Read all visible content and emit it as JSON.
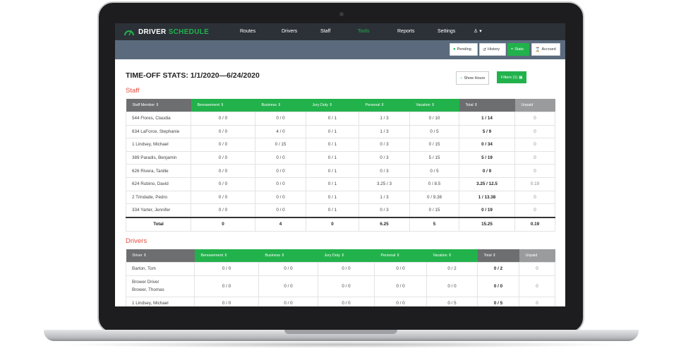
{
  "nav": {
    "brand_a": "DRIVER",
    "brand_b": "SCHEDULE",
    "items": [
      "Routes",
      "Drivers",
      "Staff",
      "Tools",
      "Reports",
      "Settings"
    ],
    "active": "Tools",
    "user_icon": "user-icon"
  },
  "toolbar": {
    "pending": "Pending",
    "history": "History",
    "stats": "Stats",
    "accrued": "Accrued"
  },
  "page": {
    "title": "TIME-OFF STATS: 1/1/2020—6/24/2020",
    "show_hours": "Show Hours",
    "filters": "Filters (1)"
  },
  "staff": {
    "title": "Staff",
    "headers": [
      "Staff Member ⇕",
      "Bereavement ⇕",
      "Business ⇕",
      "Jury Duty ⇕",
      "Personal ⇕",
      "Vacation ⇕",
      "Total ⇕",
      "Unpaid"
    ],
    "rows": [
      [
        "544 Flores, Claudia",
        "0 / 0",
        "0 / 0",
        "0 / 1",
        "1 / 3",
        "0 / 10",
        "1 / 14",
        "0"
      ],
      [
        "634 LaForce, Stephanie",
        "0 / 0",
        "4 / 0",
        "0 / 1",
        "1 / 3",
        "0 / 5",
        "5 / 9",
        "0"
      ],
      [
        "1 Lindsey, Michael",
        "0 / 0",
        "0 / 15",
        "0 / 1",
        "0 / 3",
        "0 / 15",
        "0 / 34",
        "0"
      ],
      [
        "389 Paradis, Benjamin",
        "0 / 0",
        "0 / 0",
        "0 / 1",
        "0 / 3",
        "5 / 15",
        "5 / 19",
        "0"
      ],
      [
        "626 Rivera, Tanille",
        "0 / 0",
        "0 / 0",
        "0 / 1",
        "0 / 3",
        "0 / 5",
        "0 / 9",
        "0"
      ],
      [
        "624 Rubino, David",
        "0 / 0",
        "0 / 0",
        "0 / 1",
        "3.25 / 3",
        "0 / 8.5",
        "3.25 / 12.5",
        "0.19"
      ],
      [
        "2 Trindade, Pedro",
        "0 / 0",
        "0 / 0",
        "0 / 1",
        "1 / 3",
        "0 / 9.38",
        "1 / 13.38",
        "0"
      ],
      [
        "334 Yarter, Jennifer",
        "0 / 0",
        "0 / 0",
        "0 / 1",
        "0 / 3",
        "0 / 15",
        "0 / 19",
        "0"
      ]
    ],
    "total": [
      "Total",
      "0",
      "4",
      "0",
      "6.25",
      "5",
      "15.25",
      "0.19"
    ]
  },
  "drivers": {
    "title": "Drivers",
    "headers": [
      "Driver ⇕",
      "Bereavement ⇕",
      "Business ⇕",
      "Jury Duty ⇕",
      "Personal ⇕",
      "Vacation ⇕",
      "Total ⇕",
      "Unpaid"
    ],
    "rows": [
      [
        "Barton, Tom",
        "0 / 0",
        "0 / 0",
        "0 / 0",
        "0 / 0",
        "0 / 2",
        "0 / 2",
        "0"
      ],
      [
        "Brower Driver\nBrower, Thomas",
        "0 / 0",
        "0 / 0",
        "0 / 0",
        "0 / 0",
        "0 / 0",
        "0 / 0",
        "0"
      ],
      [
        "1 Lindsey, Michael",
        "0 / 0",
        "0 / 0",
        "0 / 0",
        "0 / 0",
        "0 / 5",
        "0 / 5",
        "0"
      ]
    ]
  },
  "colors": {
    "accent": "#22b24c",
    "nav_bg": "#2c3138",
    "subbar_bg": "#5b6b7d",
    "section_title": "#e74c3c"
  }
}
